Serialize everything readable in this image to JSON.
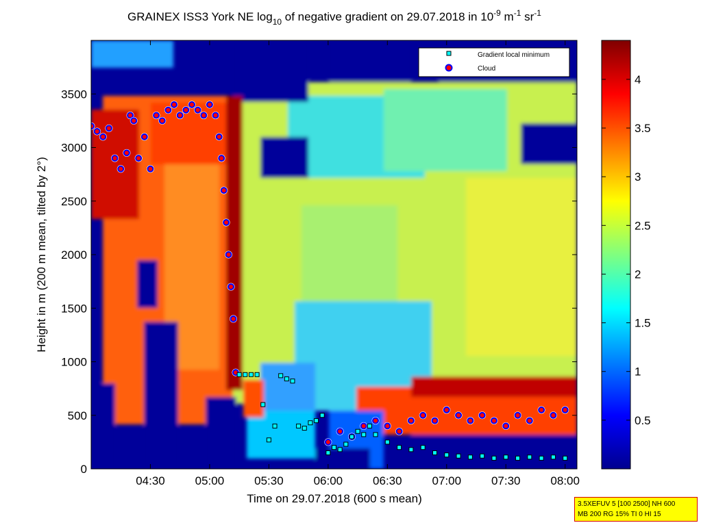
{
  "chart_data": {
    "type": "heatmap",
    "title_parts": {
      "pre": "GRAINEX ISS3 York NE log",
      "sub": "10",
      "mid": " of negative gradient on 29.07.2018 in 10",
      "sup1": "-9",
      "unit1": " m",
      "sup2": "-1",
      "unit2": " sr",
      "sup3": "-1"
    },
    "xlabel": "Time on 29.07.2018 (600 s mean)",
    "ylabel": "Height in m (200 m mean, tilted by 2°)",
    "x_start_hours": 4.0,
    "x_end_hours": 8.1,
    "xticks": [
      "04:30",
      "05:00",
      "05:30",
      "06:00",
      "06:30",
      "07:00",
      "07:30",
      "08:00"
    ],
    "xtick_hours": [
      4.5,
      5.0,
      5.5,
      6.0,
      6.5,
      7.0,
      7.5,
      8.0
    ],
    "ylim": [
      0,
      4000
    ],
    "yticks": [
      0,
      500,
      1000,
      1500,
      2000,
      2500,
      3000,
      3500
    ],
    "colorbar": {
      "range": [
        0,
        4.4
      ],
      "ticks": [
        "0.5",
        "1",
        "1.5",
        "2",
        "2.5",
        "3",
        "3.5",
        "4"
      ],
      "tick_values": [
        0.5,
        1,
        1.5,
        2,
        2.5,
        3,
        3.5,
        4
      ],
      "colormap": "jet"
    },
    "legend": {
      "position": "top-right",
      "entries": [
        {
          "label": "Gradient local minimum",
          "marker": "square",
          "color": "#00ffff"
        },
        {
          "label": "Cloud",
          "marker": "circle",
          "color": "#ff0000",
          "edge": "#0000ff"
        }
      ]
    },
    "series": [
      {
        "name": "Cloud",
        "x_hours": [
          4.0,
          4.05,
          4.1,
          4.15,
          4.2,
          4.25,
          4.3,
          4.33,
          4.36,
          4.4,
          4.45,
          4.5,
          4.55,
          4.6,
          4.65,
          4.7,
          4.75,
          4.8,
          4.85,
          4.9,
          4.95,
          5.0,
          5.05,
          5.08,
          5.1,
          5.12,
          5.14,
          5.16,
          5.18,
          5.2,
          5.22,
          6.0,
          6.1,
          6.2,
          6.3,
          6.4,
          6.5,
          6.6,
          6.7,
          6.8,
          6.9,
          7.0,
          7.1,
          7.2,
          7.3,
          7.4,
          7.5,
          7.6,
          7.7,
          7.8,
          7.9,
          8.0
        ],
        "y_m": [
          3200,
          3150,
          3100,
          3180,
          2900,
          2800,
          2950,
          3300,
          3250,
          2900,
          3100,
          2800,
          3300,
          3250,
          3350,
          3400,
          3300,
          3350,
          3400,
          3350,
          3300,
          3400,
          3300,
          3100,
          2900,
          2600,
          2300,
          2000,
          1700,
          1400,
          900,
          250,
          350,
          300,
          400,
          450,
          400,
          350,
          450,
          500,
          450,
          550,
          500,
          450,
          500,
          450,
          400,
          500,
          450,
          550,
          500,
          550
        ]
      },
      {
        "name": "Gradient local minimum",
        "x_hours": [
          5.25,
          5.3,
          5.35,
          5.4,
          5.45,
          5.5,
          5.55,
          5.6,
          5.65,
          5.7,
          5.75,
          5.8,
          5.85,
          5.9,
          5.95,
          6.0,
          6.05,
          6.1,
          6.15,
          6.2,
          6.25,
          6.3,
          6.35,
          6.4,
          6.5,
          6.6,
          6.7,
          6.8,
          6.9,
          7.0,
          7.1,
          7.2,
          7.3,
          7.4,
          7.5,
          7.6,
          7.7,
          7.8,
          7.9,
          8.0
        ],
        "y_m": [
          880,
          880,
          880,
          880,
          600,
          270,
          400,
          870,
          840,
          820,
          400,
          380,
          430,
          450,
          500,
          150,
          200,
          180,
          230,
          300,
          350,
          320,
          400,
          320,
          250,
          200,
          180,
          200,
          150,
          130,
          120,
          110,
          120,
          100,
          110,
          100,
          110,
          100,
          110,
          100
        ]
      }
    ]
  },
  "info_box": {
    "line1": "3.5XEFUV 5 [100 2500] NH 600",
    "line2": "MB 200 RG 15% TI 0 HI 15"
  },
  "colors": {
    "frame": "#000000",
    "cloud_face": "#ff0000",
    "cloud_edge": "#0000ff",
    "minimum_face": "#00ffff",
    "info_box_bg": "#ffff00",
    "info_box_border": "#d40000"
  }
}
